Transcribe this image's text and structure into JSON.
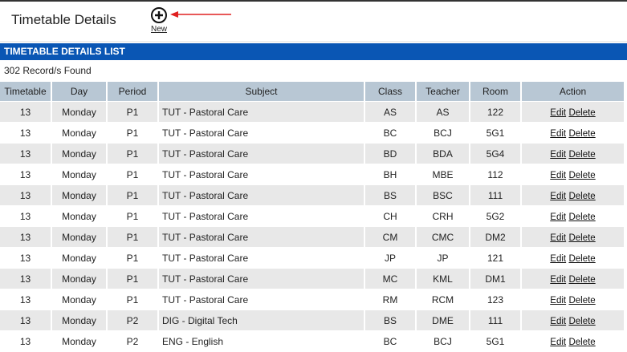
{
  "header": {
    "title": "Timetable Details",
    "new_label": "New"
  },
  "list": {
    "title": "TIMETABLE DETAILS LIST",
    "records": "302 Record/s Found",
    "columns": [
      "Timetable",
      "Day",
      "Period",
      "Subject",
      "Class",
      "Teacher",
      "Room",
      "Action"
    ],
    "edit_label": "Edit",
    "delete_label": "Delete",
    "rows": [
      [
        "13",
        "Monday",
        "P1",
        "TUT - Pastoral Care",
        "AS",
        "AS",
        "122"
      ],
      [
        "13",
        "Monday",
        "P1",
        "TUT - Pastoral Care",
        "BC",
        "BCJ",
        "5G1"
      ],
      [
        "13",
        "Monday",
        "P1",
        "TUT - Pastoral Care",
        "BD",
        "BDA",
        "5G4"
      ],
      [
        "13",
        "Monday",
        "P1",
        "TUT - Pastoral Care",
        "BH",
        "MBE",
        "112"
      ],
      [
        "13",
        "Monday",
        "P1",
        "TUT - Pastoral Care",
        "BS",
        "BSC",
        "111"
      ],
      [
        "13",
        "Monday",
        "P1",
        "TUT - Pastoral Care",
        "CH",
        "CRH",
        "5G2"
      ],
      [
        "13",
        "Monday",
        "P1",
        "TUT - Pastoral Care",
        "CM",
        "CMC",
        "DM2"
      ],
      [
        "13",
        "Monday",
        "P1",
        "TUT - Pastoral Care",
        "JP",
        "JP",
        "121"
      ],
      [
        "13",
        "Monday",
        "P1",
        "TUT - Pastoral Care",
        "MC",
        "KML",
        "DM1"
      ],
      [
        "13",
        "Monday",
        "P1",
        "TUT - Pastoral Care",
        "RM",
        "RCM",
        "123"
      ],
      [
        "13",
        "Monday",
        "P2",
        "DIG - Digital Tech",
        "BS",
        "DME",
        "111"
      ],
      [
        "13",
        "Monday",
        "P2",
        "ENG - English",
        "BC",
        "BCJ",
        "5G1"
      ]
    ]
  },
  "colors": {
    "bar": "#0a56b4",
    "header": "#b8c7d4",
    "row_alt": "#e8e8e8",
    "arrow": "#e02020"
  }
}
